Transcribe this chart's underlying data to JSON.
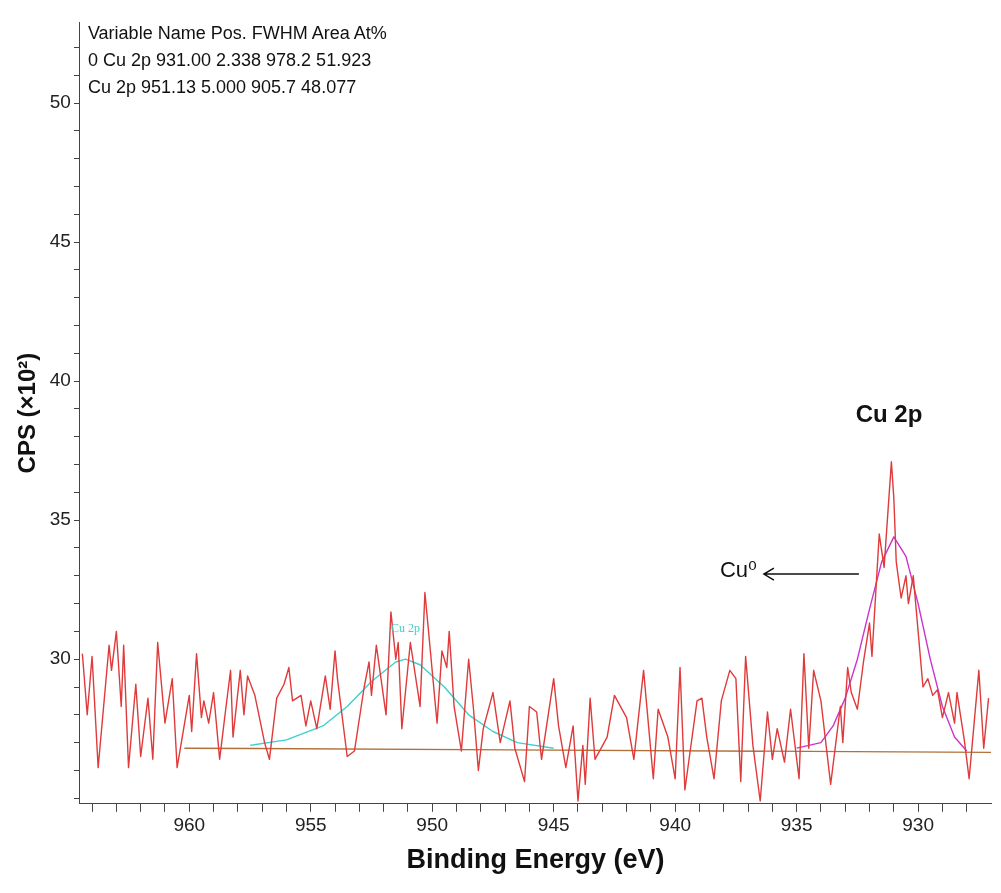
{
  "chart_data": {
    "type": "line",
    "xlabel": "Binding Energy (eV)",
    "ylabel": "CPS (×10²)",
    "xlim": [
      964.5,
      927
    ],
    "ylim": [
      24.8,
      52.9
    ],
    "xticks": [
      {
        "value": 964,
        "label": null
      },
      {
        "value": 963,
        "label": null
      },
      {
        "value": 962,
        "label": null
      },
      {
        "value": 961,
        "label": null
      },
      960,
      {
        "value": 959,
        "label": null
      },
      {
        "value": 958,
        "label": null
      },
      {
        "value": 957,
        "label": null
      },
      {
        "value": 956,
        "label": null
      },
      955,
      {
        "value": 954,
        "label": null
      },
      {
        "value": 953,
        "label": null
      },
      {
        "value": 952,
        "label": null
      },
      {
        "value": 951,
        "label": null
      },
      950,
      {
        "value": 949,
        "label": null
      },
      {
        "value": 948,
        "label": null
      },
      {
        "value": 947,
        "label": null
      },
      {
        "value": 946,
        "label": null
      },
      945,
      {
        "value": 944,
        "label": null
      },
      {
        "value": 943,
        "label": null
      },
      {
        "value": 942,
        "label": null
      },
      {
        "value": 941,
        "label": null
      },
      940,
      {
        "value": 939,
        "label": null
      },
      {
        "value": 938,
        "label": null
      },
      {
        "value": 937,
        "label": null
      },
      {
        "value": 936,
        "label": null
      },
      935,
      {
        "value": 934,
        "label": null
      },
      {
        "value": 933,
        "label": null
      },
      {
        "value": 932,
        "label": null
      },
      {
        "value": 931,
        "label": null
      },
      930,
      {
        "value": 929,
        "label": null
      },
      {
        "value": 928,
        "label": null
      }
    ],
    "yticks": [
      {
        "value": 25,
        "label": null
      },
      {
        "value": 26,
        "label": null
      },
      {
        "value": 27,
        "label": null
      },
      {
        "value": 28,
        "label": null
      },
      {
        "value": 29,
        "label": null
      },
      30,
      {
        "value": 31,
        "label": null
      },
      {
        "value": 32,
        "label": null
      },
      {
        "value": 33,
        "label": null
      },
      {
        "value": 34,
        "label": null
      },
      35,
      {
        "value": 36,
        "label": null
      },
      {
        "value": 37,
        "label": null
      },
      {
        "value": 38,
        "label": null
      },
      {
        "value": 39,
        "label": null
      },
      40,
      {
        "value": 41,
        "label": null
      },
      {
        "value": 42,
        "label": null
      },
      {
        "value": 43,
        "label": null
      },
      {
        "value": 44,
        "label": null
      },
      45,
      {
        "value": 46,
        "label": null
      },
      {
        "value": 47,
        "label": null
      },
      {
        "value": 48,
        "label": null
      },
      {
        "value": 49,
        "label": null
      },
      50,
      {
        "value": 51,
        "label": null
      },
      {
        "value": 52,
        "label": null
      }
    ],
    "grid": false,
    "legend": false,
    "annotations": [
      "Variable Name Pos. FWHM Area At%",
      "0 Cu 2p 931.00 2.338 978.2 51.923",
      "Cu 2p 951.13 5.000 905.7 48.077",
      "Cu 2p",
      "Cu⁰"
    ],
    "series": [
      {
        "color": "#e03a3a",
        "x": [
          964.4,
          964.2,
          964.0,
          963.75,
          963.3,
          963.2,
          963.0,
          962.8,
          962.7,
          962.5,
          962.2,
          962.0,
          961.7,
          961.5,
          961.3,
          961.0,
          960.7,
          960.5,
          960.0,
          959.9,
          959.7,
          959.5,
          959.4,
          959.2,
          959.0,
          958.75,
          958.5,
          958.3,
          958.2,
          957.9,
          957.75,
          957.6,
          957.3,
          956.9,
          956.7,
          956.4,
          956.1,
          955.9,
          955.75,
          955.4,
          955.2,
          955.0,
          954.75,
          954.4,
          954.2,
          954.0,
          953.9,
          953.5,
          953.2,
          952.8,
          952.6,
          952.5,
          952.3,
          951.9,
          951.7,
          951.5,
          951.4,
          951.25,
          950.9,
          950.5,
          950.3,
          949.8,
          949.6,
          949.4,
          949.3,
          949.1,
          948.8,
          948.5,
          948.3,
          948.1,
          947.9,
          947.5,
          947.2,
          946.8,
          946.6,
          946.2,
          946.0,
          945.7,
          945.5,
          945.0,
          944.8,
          944.5,
          944.2,
          944.0,
          943.8,
          943.7,
          943.5,
          943.3,
          942.8,
          942.5,
          942.0,
          941.7,
          941.3,
          940.9,
          940.7,
          940.3,
          940.0,
          939.8,
          939.6,
          939.1,
          938.9,
          938.7,
          938.4,
          938.1,
          937.75,
          937.5,
          937.3,
          937.1,
          936.8,
          936.5,
          936.2,
          936.0,
          935.8,
          935.5,
          935.25,
          934.9,
          934.7,
          934.5,
          934.3,
          934.0,
          933.6,
          933.2,
          933.1,
          932.9,
          932.75,
          932.5,
          932.25,
          932.0,
          931.9,
          931.6,
          931.4,
          931.1,
          931.0,
          930.9,
          930.7,
          930.5,
          930.4,
          930.2,
          930.0,
          929.8,
          929.6,
          929.4,
          929.2,
          929.0,
          928.75,
          928.5,
          928.4,
          928.1,
          927.9,
          927.5,
          927.3,
          927.1
        ],
        "values": [
          30.2,
          28.0,
          30.1,
          26.1,
          30.5,
          29.6,
          31.0,
          28.3,
          30.5,
          26.1,
          29.1,
          26.5,
          28.6,
          26.4,
          30.6,
          27.7,
          29.3,
          26.1,
          28.7,
          27.4,
          30.2,
          27.9,
          28.5,
          27.7,
          28.8,
          26.4,
          28.2,
          29.6,
          27.2,
          29.6,
          28.0,
          29.4,
          28.7,
          27.0,
          26.4,
          28.6,
          29.1,
          29.7,
          28.5,
          28.7,
          27.6,
          28.5,
          27.5,
          29.4,
          28.2,
          30.3,
          29.3,
          26.5,
          26.7,
          29.0,
          29.9,
          28.7,
          30.5,
          28.0,
          31.7,
          30.0,
          30.6,
          27.5,
          30.6,
          28.3,
          32.4,
          27.7,
          30.3,
          29.7,
          31.0,
          28.3,
          26.7,
          30.0,
          28.2,
          26.0,
          27.5,
          28.8,
          27.0,
          28.5,
          26.8,
          25.6,
          28.3,
          28.1,
          26.4,
          29.3,
          27.6,
          26.1,
          27.6,
          24.9,
          26.9,
          25.5,
          28.6,
          26.4,
          27.2,
          28.7,
          27.9,
          26.4,
          29.6,
          25.7,
          28.2,
          27.2,
          25.7,
          29.7,
          25.3,
          28.5,
          28.6,
          27.2,
          25.7,
          28.5,
          29.6,
          29.3,
          25.6,
          30.1,
          26.9,
          24.9,
          28.1,
          26.4,
          27.5,
          26.3,
          28.2,
          25.7,
          30.2,
          26.8,
          29.6,
          28.5,
          25.5,
          28.3,
          27.0,
          29.7,
          28.8,
          28.2,
          29.9,
          31.3,
          30.1,
          34.5,
          33.3,
          37.1,
          35.8,
          33.5,
          32.2,
          33.0,
          32.0,
          33.0,
          31.0,
          29.0,
          29.3,
          28.7,
          28.9,
          27.9,
          28.8,
          27.7,
          28.8,
          27.1,
          25.7,
          29.6,
          26.8,
          28.6
        ]
      },
      {
        "name": "Cu 2p",
        "color": "#3fcfcf",
        "x": [
          957.5,
          956,
          954.5,
          953.5,
          952.5,
          951.5,
          951.1,
          950.5,
          949.5,
          948.5,
          947.5,
          946.5,
          945
        ],
        "values": [
          26.9,
          27.1,
          27.6,
          28.3,
          29.2,
          29.9,
          30.0,
          29.8,
          29.0,
          28.0,
          27.4,
          27.0,
          26.8
        ]
      },
      {
        "color": "#cc33cc",
        "x": [
          935,
          934,
          933.5,
          933,
          932.5,
          932,
          931.5,
          931,
          930.5,
          930,
          929.5,
          929,
          928.5,
          928
        ],
        "values": [
          26.8,
          27.0,
          27.6,
          28.6,
          30.0,
          31.8,
          33.5,
          34.4,
          33.7,
          32.0,
          30.0,
          28.3,
          27.2,
          26.7
        ]
      },
      {
        "color": "#b0703a",
        "x": [
          960.2,
          927
        ],
        "values": [
          26.8,
          26.65
        ]
      }
    ]
  }
}
